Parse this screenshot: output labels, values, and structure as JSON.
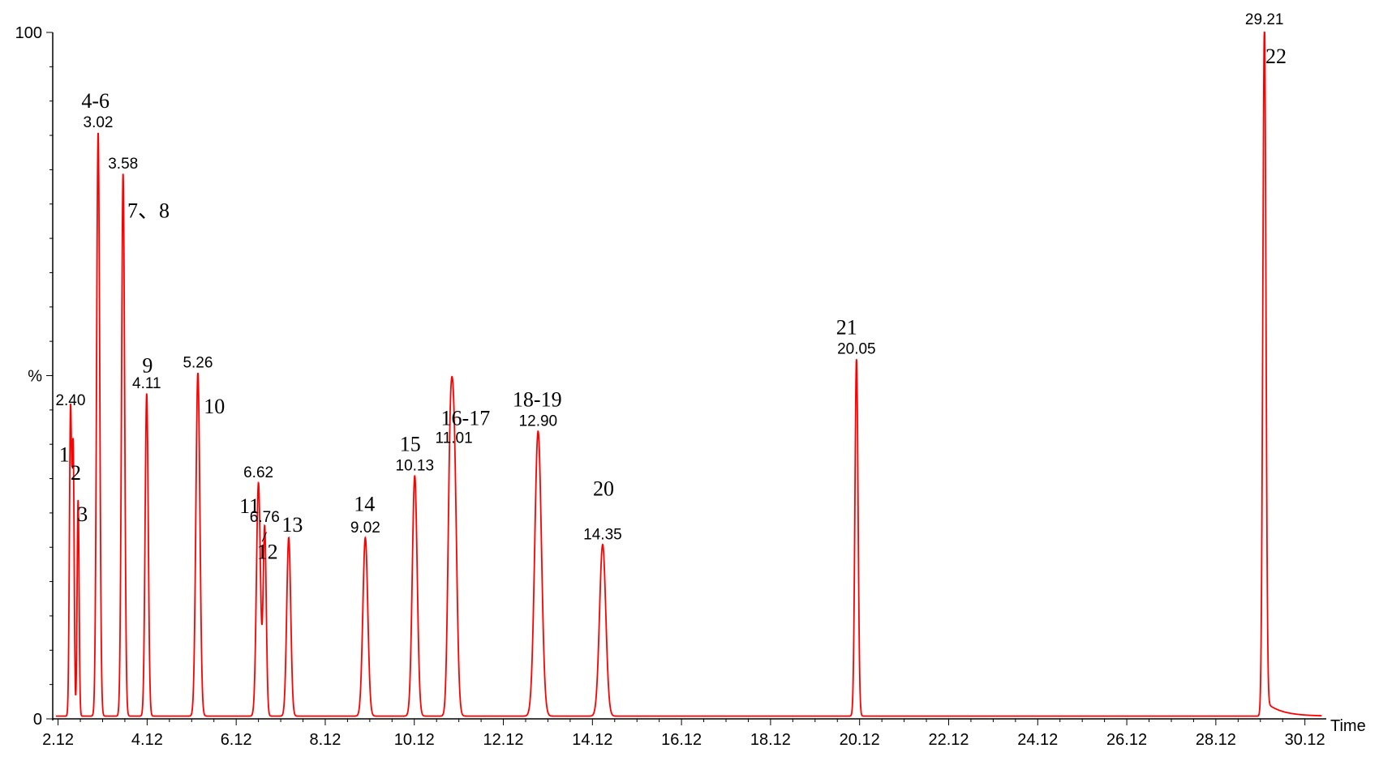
{
  "chart_data": {
    "type": "line",
    "xlabel": "Time",
    "ylabel": "%",
    "xlim": [
      2.0,
      30.6
    ],
    "ylim": [
      0,
      100
    ],
    "x_ticks": [
      2.12,
      4.12,
      6.12,
      8.12,
      10.12,
      12.12,
      14.12,
      16.12,
      18.12,
      20.12,
      22.12,
      24.12,
      26.12,
      28.12,
      30.12
    ],
    "x_tick_labels": [
      "2.12",
      "4.12",
      "6.12",
      "8.12",
      "10.12",
      "12.12",
      "14.12",
      "16.12",
      "18.12",
      "20.12",
      "22.12",
      "24.12",
      "26.12",
      "28.12",
      "30.12"
    ],
    "y_tick_labels": [
      {
        "value": 0,
        "label": "0"
      },
      {
        "value": 50,
        "label": "%"
      },
      {
        "value": 100,
        "label": "100"
      }
    ],
    "line_color": "#ff0000",
    "grid": false,
    "peaks": [
      {
        "rt": 2.4,
        "height": 44.5,
        "width": 0.025
      },
      {
        "rt": 2.46,
        "height": 37.5,
        "width": 0.022
      },
      {
        "rt": 2.57,
        "height": 31.5,
        "width": 0.022
      },
      {
        "rt": 3.02,
        "height": 85,
        "width": 0.035
      },
      {
        "rt": 3.58,
        "height": 79,
        "width": 0.035
      },
      {
        "rt": 4.11,
        "height": 47,
        "width": 0.035
      },
      {
        "rt": 5.26,
        "height": 50,
        "width": 0.045
      },
      {
        "rt": 6.62,
        "height": 34,
        "width": 0.045
      },
      {
        "rt": 6.76,
        "height": 27.5,
        "width": 0.035
      },
      {
        "rt": 7.3,
        "height": 26,
        "width": 0.045
      },
      {
        "rt": 9.02,
        "height": 26,
        "width": 0.055
      },
      {
        "rt": 10.13,
        "height": 35,
        "width": 0.055
      },
      {
        "rt": 10.92,
        "height": 30,
        "width": 0.05
      },
      {
        "rt": 11.01,
        "height": 39,
        "width": 0.06
      },
      {
        "rt": 12.9,
        "height": 41.5,
        "width": 0.075
      },
      {
        "rt": 14.35,
        "height": 25,
        "width": 0.07
      },
      {
        "rt": 20.05,
        "height": 52,
        "width": 0.035
      },
      {
        "rt": 29.21,
        "height": 100,
        "width": 0.035
      }
    ],
    "rt_labels": [
      {
        "text": "2.40",
        "x": 2.4,
        "y": 44.5
      },
      {
        "text": "3.02",
        "x": 3.02,
        "y": 85
      },
      {
        "text": "3.58",
        "x": 3.58,
        "y": 79
      },
      {
        "text": "4.11",
        "x": 4.11,
        "y": 47
      },
      {
        "text": "5.26",
        "x": 5.26,
        "y": 50
      },
      {
        "text": "6.62",
        "x": 6.62,
        "y": 34
      },
      {
        "text": "6.76",
        "x": 6.76,
        "y": 27.5
      },
      {
        "text": "9.02",
        "x": 9.02,
        "y": 26
      },
      {
        "text": "10.13",
        "x": 10.13,
        "y": 35
      },
      {
        "text": "11.01",
        "x": 11.01,
        "y": 39
      },
      {
        "text": "12.90",
        "x": 12.9,
        "y": 41.5
      },
      {
        "text": "14.35",
        "x": 14.35,
        "y": 25
      },
      {
        "text": "20.05",
        "x": 20.05,
        "y": 52
      },
      {
        "text": "29.21",
        "x": 29.21,
        "y": 100
      }
    ],
    "peak_numbers": [
      {
        "text": "1",
        "x": 2.26,
        "y": 37.5
      },
      {
        "text": "2",
        "x": 2.52,
        "y": 34.8
      },
      {
        "text": "3",
        "x": 2.67,
        "y": 28.8
      },
      {
        "text": "4-6",
        "x": 2.96,
        "y": 89
      },
      {
        "text": "7、8",
        "x": 4.15,
        "y": 73
      },
      {
        "text": "9",
        "x": 4.13,
        "y": 50.5
      },
      {
        "text": "10",
        "x": 5.63,
        "y": 44.5
      },
      {
        "text": "11",
        "x": 6.42,
        "y": 30
      },
      {
        "text": "12",
        "x": 6.82,
        "y": 23.3
      },
      {
        "text": "13",
        "x": 7.38,
        "y": 27.3
      },
      {
        "text": "14",
        "x": 9.0,
        "y": 30.3
      },
      {
        "text": "15",
        "x": 10.03,
        "y": 39
      },
      {
        "text": "16-17",
        "x": 11.27,
        "y": 42.8
      },
      {
        "text": "18-19",
        "x": 12.88,
        "y": 45.5
      },
      {
        "text": "20",
        "x": 14.37,
        "y": 32.5
      },
      {
        "text": "21",
        "x": 19.83,
        "y": 56
      },
      {
        "text": "22",
        "x": 29.47,
        "y": 95.5
      }
    ]
  }
}
